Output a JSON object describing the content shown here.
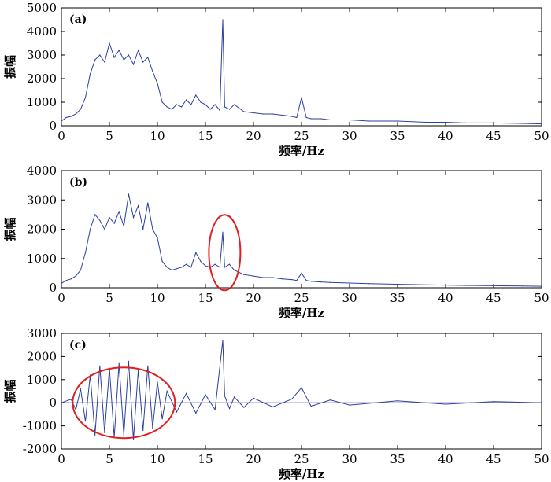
{
  "chart_data": [
    {
      "type": "line",
      "panel_label": "(a)",
      "xlabel": "频率/Hz",
      "ylabel": "振幅",
      "xlim": [
        0,
        50
      ],
      "ylim": [
        0,
        5000
      ],
      "xticks": [
        0,
        5,
        10,
        15,
        20,
        25,
        30,
        35,
        40,
        45,
        50
      ],
      "yticks": [
        0,
        1000,
        2000,
        3000,
        4000,
        5000
      ],
      "grid": false,
      "line_color": "#2b3f9e",
      "series": [
        {
          "x": [
            0,
            0.5,
            1,
            1.5,
            2,
            2.5,
            3,
            3.5,
            4,
            4.5,
            5,
            5.5,
            6,
            6.5,
            7,
            7.5,
            8,
            8.5,
            9,
            9.5,
            10,
            10.5,
            11,
            11.5,
            12,
            12.5,
            13,
            13.5,
            14,
            14.5,
            15,
            15.5,
            16,
            16.5,
            16.8,
            17,
            17.5,
            18,
            19,
            20,
            21,
            22,
            23,
            24,
            24.5,
            25,
            25.5,
            26,
            27,
            28,
            30,
            32,
            35,
            38,
            40,
            42,
            45,
            48,
            50
          ],
          "y": [
            200,
            350,
            400,
            500,
            700,
            1200,
            2200,
            2800,
            3000,
            2700,
            3500,
            2900,
            3200,
            2800,
            3000,
            2600,
            3200,
            2700,
            2900,
            2300,
            1800,
            1000,
            800,
            700,
            900,
            800,
            1100,
            900,
            1300,
            1000,
            900,
            700,
            900,
            650,
            4500,
            800,
            700,
            900,
            600,
            550,
            500,
            500,
            450,
            400,
            350,
            1200,
            350,
            300,
            300,
            250,
            250,
            200,
            200,
            150,
            150,
            120,
            120,
            100,
            80
          ]
        }
      ]
    },
    {
      "type": "line",
      "panel_label": "(b)",
      "xlabel": "频率/Hz",
      "ylabel": "振幅",
      "xlim": [
        0,
        50
      ],
      "ylim": [
        0,
        4000
      ],
      "xticks": [
        0,
        5,
        10,
        15,
        20,
        25,
        30,
        35,
        40,
        45,
        50
      ],
      "yticks": [
        0,
        1000,
        2000,
        3000,
        4000
      ],
      "grid": false,
      "line_color": "#2b3f9e",
      "annotation_ellipse_center": [
        17,
        1200
      ],
      "series": [
        {
          "x": [
            0,
            0.5,
            1,
            1.5,
            2,
            2.5,
            3,
            3.5,
            4,
            4.5,
            5,
            5.5,
            6,
            6.5,
            7,
            7.5,
            8,
            8.5,
            9,
            9.5,
            10,
            10.5,
            11,
            11.5,
            12,
            12.5,
            13,
            13.5,
            14,
            14.5,
            15,
            15.5,
            16,
            16.5,
            16.8,
            17,
            17.5,
            18,
            19,
            20,
            21,
            22,
            23,
            24,
            24.5,
            25,
            25.5,
            26,
            27,
            28,
            30,
            32,
            35,
            38,
            40,
            42,
            45,
            48,
            50
          ],
          "y": [
            150,
            250,
            300,
            400,
            600,
            1200,
            2000,
            2500,
            2300,
            2000,
            2400,
            2200,
            2600,
            2100,
            3200,
            2400,
            2800,
            2000,
            2900,
            2000,
            1700,
            900,
            700,
            600,
            650,
            700,
            800,
            700,
            1200,
            900,
            750,
            700,
            800,
            700,
            1900,
            700,
            800,
            600,
            450,
            400,
            350,
            350,
            300,
            280,
            250,
            500,
            250,
            220,
            200,
            180,
            160,
            140,
            120,
            100,
            90,
            80,
            70,
            60,
            50
          ]
        }
      ]
    },
    {
      "type": "line",
      "panel_label": "(c)",
      "xlabel": "频率/Hz",
      "ylabel": "振幅",
      "xlim": [
        0,
        50
      ],
      "ylim": [
        -2000,
        3000
      ],
      "xticks": [
        0,
        5,
        10,
        15,
        20,
        25,
        30,
        35,
        40,
        45,
        50
      ],
      "yticks": [
        -2000,
        -1000,
        0,
        1000,
        2000,
        3000
      ],
      "grid": false,
      "line_color": "#2b3f9e",
      "annotation_ellipse_center": [
        6.5,
        0
      ],
      "series": [
        {
          "x": [
            0,
            1,
            1.5,
            2,
            2.5,
            3,
            3.5,
            4,
            4.5,
            5,
            5.5,
            6,
            6.5,
            7,
            7.5,
            8,
            8.5,
            9,
            9.5,
            10,
            10.5,
            11,
            12,
            13,
            14,
            15,
            16,
            16.8,
            17,
            17.5,
            18,
            19,
            20,
            22,
            24,
            25,
            26,
            28,
            30,
            35,
            40,
            45,
            50
          ],
          "y": [
            0,
            150,
            -300,
            600,
            -800,
            1200,
            -1400,
            1600,
            -1300,
            1500,
            -1500,
            1700,
            -1400,
            1800,
            -1600,
            1400,
            -1200,
            1600,
            -1100,
            900,
            -700,
            500,
            -400,
            400,
            -450,
            350,
            -300,
            2700,
            300,
            -250,
            250,
            -200,
            200,
            -180,
            160,
            650,
            -150,
            120,
            -100,
            80,
            -60,
            50,
            0
          ]
        }
      ]
    }
  ]
}
